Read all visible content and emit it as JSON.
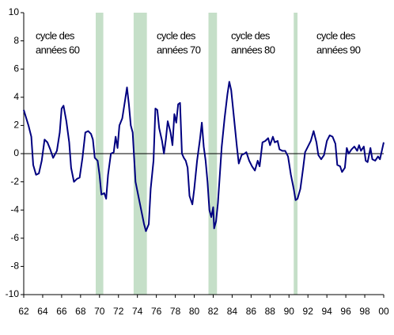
{
  "chart_data": {
    "type": "line",
    "x": [
      1962.0,
      1962.5,
      1962.8,
      1963.0,
      1963.3,
      1963.6,
      1963.9,
      1964.2,
      1964.5,
      1964.8,
      1965.1,
      1965.5,
      1965.8,
      1966.0,
      1966.2,
      1966.5,
      1966.8,
      1967.0,
      1967.3,
      1967.6,
      1967.9,
      1968.2,
      1968.5,
      1968.8,
      1969.1,
      1969.3,
      1969.5,
      1969.8,
      1970.0,
      1970.2,
      1970.5,
      1970.7,
      1970.9,
      1971.2,
      1971.5,
      1971.7,
      1971.9,
      1972.1,
      1972.4,
      1972.7,
      1972.9,
      1973.1,
      1973.3,
      1973.5,
      1973.8,
      1974.1,
      1974.4,
      1974.7,
      1974.9,
      1975.2,
      1975.4,
      1975.7,
      1975.9,
      1976.1,
      1976.3,
      1976.6,
      1976.8,
      1977.0,
      1977.2,
      1977.5,
      1977.7,
      1977.9,
      1978.1,
      1978.3,
      1978.5,
      1978.7,
      1978.9,
      1979.1,
      1979.3,
      1979.5,
      1979.8,
      1980.0,
      1980.3,
      1980.6,
      1980.8,
      1981.0,
      1981.2,
      1981.4,
      1981.6,
      1981.8,
      1982.0,
      1982.1,
      1982.3,
      1982.5,
      1982.7,
      1982.9,
      1983.2,
      1983.5,
      1983.7,
      1983.9,
      1984.2,
      1984.5,
      1984.7,
      1985.0,
      1985.3,
      1985.5,
      1985.8,
      1986.1,
      1986.4,
      1986.7,
      1986.9,
      1987.2,
      1987.5,
      1987.8,
      1988.0,
      1988.3,
      1988.5,
      1988.8,
      1989.0,
      1989.3,
      1989.6,
      1989.9,
      1990.2,
      1990.5,
      1990.7,
      1990.9,
      1991.2,
      1991.5,
      1991.7,
      1992.0,
      1992.3,
      1992.6,
      1992.9,
      1993.1,
      1993.4,
      1993.7,
      1994.0,
      1994.3,
      1994.6,
      1994.9,
      1995.1,
      1995.4,
      1995.6,
      1995.9,
      1996.1,
      1996.3,
      1996.6,
      1996.9,
      1997.2,
      1997.4,
      1997.6,
      1997.9,
      1998.1,
      1998.3,
      1998.6,
      1998.8,
      1999.1,
      1999.4,
      1999.6,
      1999.8,
      2000.0
    ],
    "series": [
      {
        "color": "#000080",
        "values": [
          3.1,
          2.0,
          1.2,
          -0.8,
          -1.5,
          -1.4,
          -0.5,
          1.0,
          0.8,
          0.3,
          -0.3,
          0.2,
          1.5,
          3.2,
          3.4,
          2.3,
          0.8,
          -1.0,
          -2.0,
          -1.8,
          -1.7,
          -0.3,
          1.5,
          1.6,
          1.4,
          1.0,
          -0.3,
          -0.5,
          -1.5,
          -2.9,
          -2.8,
          -3.2,
          -1.5,
          0.0,
          0.1,
          1.2,
          0.4,
          2.0,
          2.5,
          3.8,
          4.7,
          3.5,
          2.0,
          1.5,
          -2.0,
          -3.0,
          -4.0,
          -5.0,
          -5.5,
          -5.0,
          -2.5,
          -0.5,
          3.2,
          3.1,
          1.8,
          0.9,
          0.0,
          1.0,
          2.3,
          1.5,
          0.6,
          2.8,
          2.2,
          3.5,
          3.6,
          0.0,
          -0.3,
          -0.5,
          -1.0,
          -3.0,
          -3.6,
          -2.5,
          -0.5,
          1.0,
          2.2,
          0.5,
          -0.5,
          -2.0,
          -4.0,
          -4.5,
          -3.8,
          -5.3,
          -4.8,
          -3.5,
          -1.5,
          0.5,
          2.5,
          4.2,
          5.1,
          4.5,
          2.5,
          0.5,
          -0.7,
          -0.1,
          0.0,
          0.1,
          -0.5,
          -0.9,
          -1.2,
          -0.5,
          -0.9,
          0.8,
          0.9,
          1.1,
          0.6,
          1.2,
          0.8,
          0.9,
          0.3,
          0.2,
          0.2,
          -0.2,
          -1.5,
          -2.5,
          -3.3,
          -3.2,
          -2.5,
          -1.0,
          0.1,
          0.5,
          0.9,
          1.6,
          0.8,
          -0.1,
          -0.4,
          -0.1,
          0.9,
          1.3,
          1.2,
          0.7,
          -0.8,
          -0.9,
          -1.3,
          -1.0,
          0.4,
          0.0,
          0.3,
          0.5,
          0.2,
          0.6,
          0.2,
          0.5,
          -0.5,
          -0.6,
          0.4,
          -0.4,
          -0.5,
          -0.2,
          -0.4,
          0.2,
          0.8
        ]
      }
    ],
    "shaded_periods": [
      [
        1969.6,
        1970.4
      ],
      [
        1973.6,
        1975.0
      ],
      [
        1981.5,
        1982.4
      ],
      [
        1990.5,
        1990.9
      ]
    ],
    "shade_color": "#c5dfc8",
    "annotations": [
      {
        "lines": [
          "cycle des",
          "années 60"
        ]
      },
      {
        "lines": [
          "cycle des",
          "années 70"
        ]
      },
      {
        "lines": [
          "cycle des",
          "années 80"
        ]
      },
      {
        "lines": [
          "cycle des",
          "années 90"
        ]
      }
    ],
    "xlim": [
      1962,
      2000
    ],
    "ylim": [
      -10,
      10
    ],
    "yticks": [
      -10,
      -8,
      -6,
      -4,
      -2,
      0,
      2,
      4,
      6,
      8,
      10
    ],
    "xticks": [
      {
        "value": 1962,
        "label": "62"
      },
      {
        "value": 1964,
        "label": "64"
      },
      {
        "value": 1966,
        "label": "66"
      },
      {
        "value": 1968,
        "label": "68"
      },
      {
        "value": 1970,
        "label": "70"
      },
      {
        "value": 1972,
        "label": "72"
      },
      {
        "value": 1974,
        "label": "74"
      },
      {
        "value": 1976,
        "label": "76"
      },
      {
        "value": 1978,
        "label": "78"
      },
      {
        "value": 1980,
        "label": "80"
      },
      {
        "value": 1982,
        "label": "82"
      },
      {
        "value": 1984,
        "label": "84"
      },
      {
        "value": 1986,
        "label": "86"
      },
      {
        "value": 1988,
        "label": "88"
      },
      {
        "value": 1990,
        "label": "90"
      },
      {
        "value": 1992,
        "label": "92"
      },
      {
        "value": 1994,
        "label": "94"
      },
      {
        "value": 1996,
        "label": "96"
      },
      {
        "value": 1998,
        "label": "98"
      },
      {
        "value": 2000,
        "label": "00"
      }
    ]
  }
}
